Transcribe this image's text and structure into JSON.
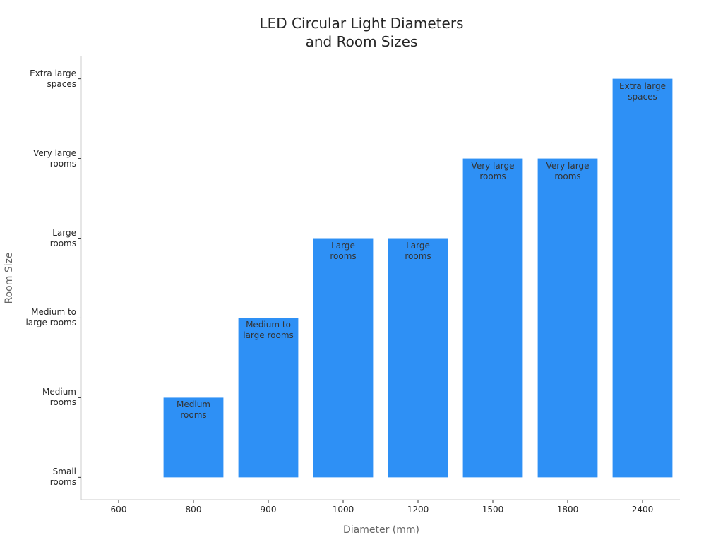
{
  "chart_data": {
    "type": "bar",
    "title": "LED Circular Light Diameters\nand Room Sizes",
    "x_label": "Diameter (mm)",
    "y_label": "Room Size",
    "categories": [
      "600",
      "800",
      "900",
      "1000",
      "1200",
      "1500",
      "1800",
      "2400"
    ],
    "values": [
      0,
      1,
      2,
      3,
      3,
      4,
      4,
      5
    ],
    "value_labels": [
      null,
      "Medium\nrooms",
      "Medium to\nlarge rooms",
      "Large\nrooms",
      "Large\nrooms",
      "Very large\nrooms",
      "Very large\nrooms",
      "Extra large\nspaces"
    ],
    "color": "#2e90f5",
    "ylim": [
      -0.28,
      5.28
    ],
    "yticks": [
      {
        "value": 0,
        "label": "Small\nrooms"
      },
      {
        "value": 1,
        "label": "Medium\nrooms"
      },
      {
        "value": 2,
        "label": "Medium to\nlarge rooms"
      },
      {
        "value": 3,
        "label": "Large\nrooms"
      },
      {
        "value": 4,
        "label": "Very large\nrooms"
      },
      {
        "value": 5,
        "label": "Extra large\nspaces"
      }
    ],
    "grid": false
  }
}
